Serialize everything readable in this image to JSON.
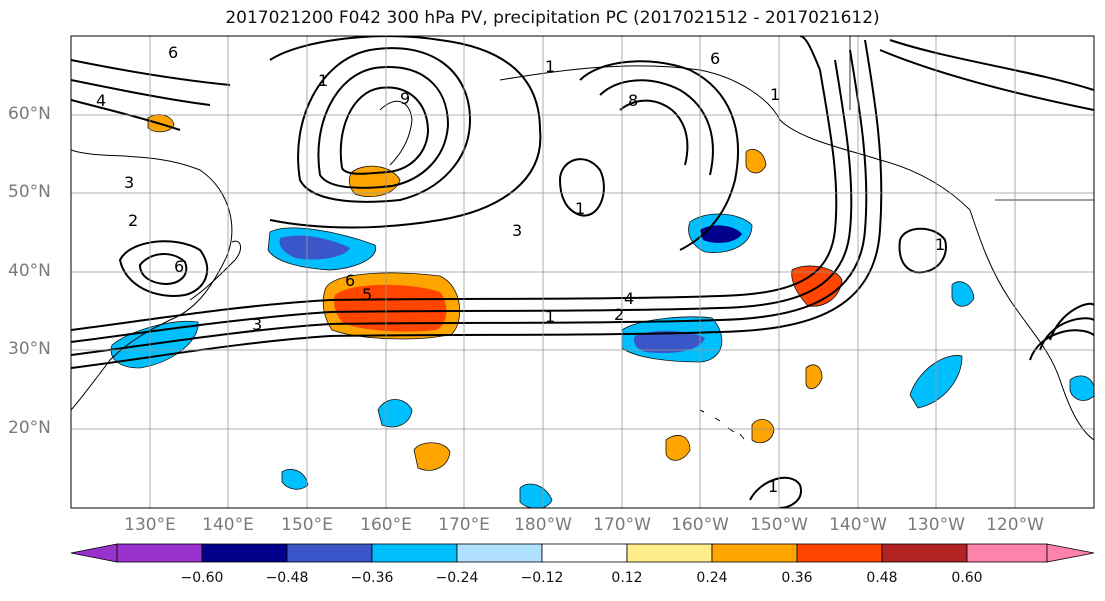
{
  "title": "2017021200 F042 300 hPa PV, precipitation PC (2017021512 - 2017021612)",
  "lat_labels": [
    "60°N",
    "50°N",
    "40°N",
    "30°N",
    "20°N"
  ],
  "lon_labels": [
    "130°E",
    "140°E",
    "150°E",
    "160°E",
    "170°E",
    "180°W",
    "170°W",
    "160°W",
    "150°W",
    "140°W",
    "130°W",
    "120°W"
  ],
  "colorbar": {
    "colors": [
      "#9932cc",
      "#00008b",
      "#3a56c8",
      "#00bfff",
      "#b0e2ff",
      "#ffffff",
      "#ffec8b",
      "#ffa500",
      "#ff4500",
      "#b22222",
      "#ff82ab"
    ],
    "labels": [
      "−0.60",
      "−0.48",
      "−0.36",
      "−0.24",
      "−0.12",
      "0.12",
      "0.24",
      "0.36",
      "0.48",
      "0.60"
    ]
  },
  "contour_labels": [
    "6",
    "4",
    "1",
    "3",
    "2",
    "6",
    "5",
    "3",
    "1",
    "4",
    "2",
    "6",
    "9",
    "1",
    "1",
    "3",
    "6",
    "8",
    "1",
    "1",
    "1"
  ]
}
